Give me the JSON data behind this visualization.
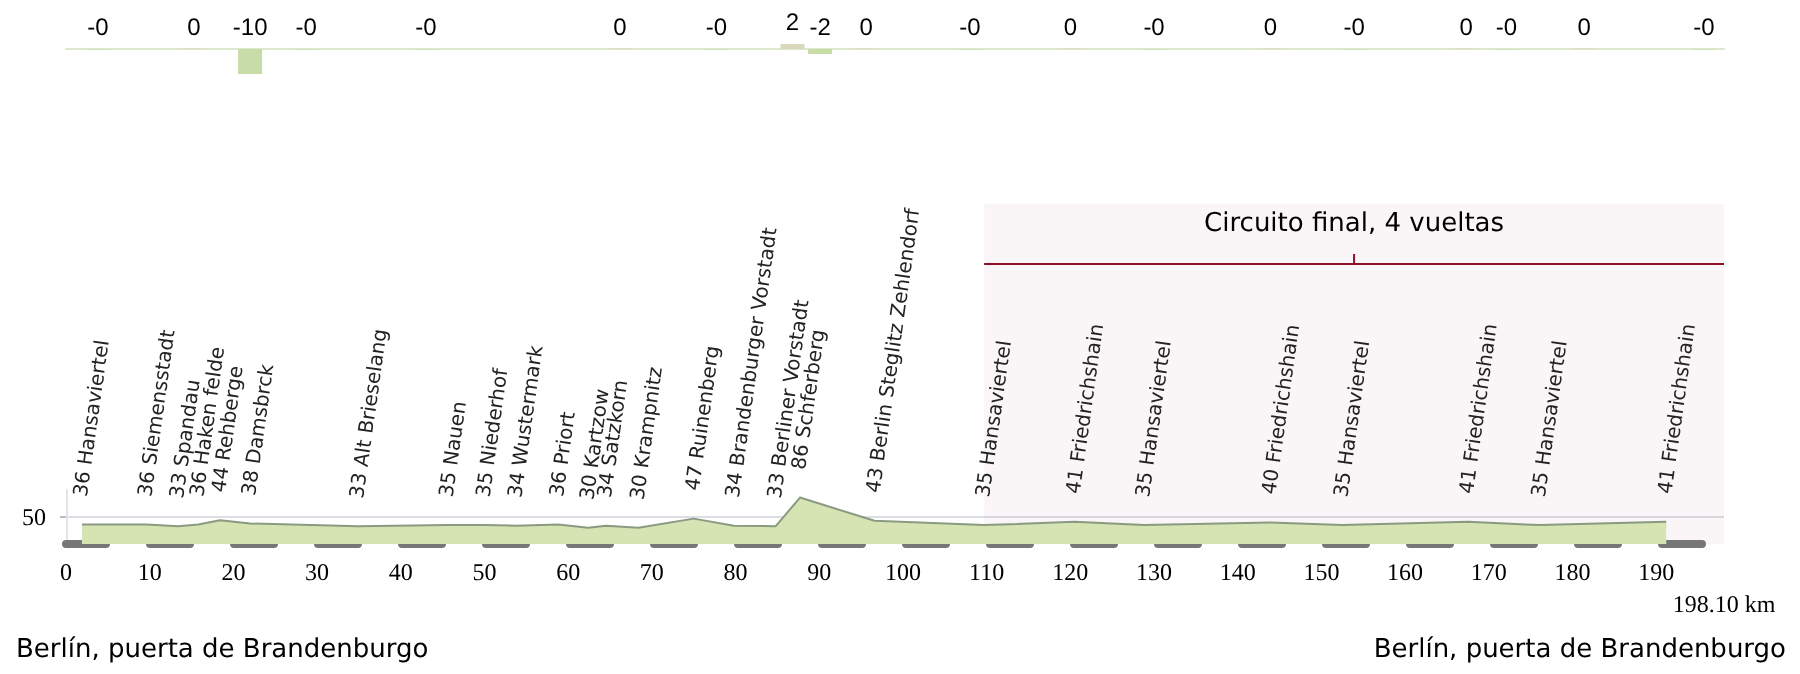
{
  "chart_data": [
    {
      "type": "bar",
      "x": [
        3.8,
        15.3,
        22.0,
        28.7,
        43.0,
        66.2,
        77.7,
        86.8,
        90.1,
        95.6,
        108.0,
        120.0,
        130.0,
        143.9,
        153.9,
        167.3,
        172.1,
        181.4,
        195.7
      ],
      "values": [
        -0.2,
        0.2,
        -10,
        -0.2,
        -0.2,
        0.2,
        -0.2,
        2,
        -2,
        0.2,
        -0.2,
        0.2,
        -0.2,
        0.2,
        -0.2,
        0.2,
        -0.2,
        0.2,
        -0.2
      ],
      "value_labels": [
        "-0",
        "0",
        "-10",
        "-0",
        "-0",
        "0",
        "-0",
        "2",
        "-2",
        "0",
        "-0",
        "0",
        "-0",
        "0",
        "-0",
        "0",
        "-0",
        "0",
        "-0"
      ],
      "colors": [
        "#c8dca8",
        "#d8d8bc",
        "#c8dca8",
        "#c8dca8",
        "#c8dca8",
        "#d8d8bc",
        "#c8dca8",
        "#d8d8bc",
        "#c8dca8",
        "#d8d8bc",
        "#c8dca8",
        "#d8d8bc",
        "#c8dca8",
        "#d8d8bc",
        "#c8dca8",
        "#d8d8bc",
        "#c8dca8",
        "#d8d8bc",
        "#c8dca8"
      ],
      "xlim": [
        0,
        198.1
      ],
      "tick_labels": false
    },
    {
      "type": "area",
      "color": "#8a9a80",
      "x": [
        1.9,
        9.6,
        13.4,
        15.8,
        18.4,
        22.0,
        34.9,
        45.6,
        50.0,
        53.8,
        58.8,
        62.4,
        64.5,
        68.4,
        75.0,
        79.8,
        84.8,
        87.7,
        96.6,
        109.7,
        120.5,
        128.8,
        143.9,
        152.5,
        167.5,
        176.1,
        191.2
      ],
      "values": [
        36,
        36,
        33,
        36,
        44,
        38,
        33,
        35,
        35,
        34,
        36,
        30,
        34,
        30,
        47,
        34,
        33,
        86,
        43,
        35,
        41,
        35,
        40,
        35,
        41,
        35,
        41
      ],
      "value_labels": [
        "36 Hansaviertel",
        "36 Siemensstadt",
        "33 Spandau",
        "36 Haken felde",
        "44 Rehberge",
        "38 Damsbrck",
        "33 Alt Brieselang",
        "35 Nauen",
        "35 Niederhof",
        "34 Wustermark",
        "36 Priort",
        "30 Kartzow",
        "34 Satzkorn",
        "30 Krampnitz",
        "47 Ruinenberg",
        "34 Brandenburger Vorstadt",
        "33 Berliner Vorstadt",
        "86 Schferberg",
        "43 Berlin Steglitz Zehlendorf",
        "35 Hansaviertel",
        "41 Friedrichshain",
        "35 Hansaviertel",
        "40 Friedrichshain",
        "35 Hansaviertel",
        "41 Friedrichshain",
        "35 Hansaviertel",
        "41 Friedrichshain"
      ],
      "xlim": [
        0,
        198.1
      ],
      "xticks": [
        0,
        10,
        20,
        30,
        40,
        50,
        60,
        70,
        80,
        90,
        100,
        110,
        120,
        130,
        140,
        150,
        160,
        170,
        180,
        190
      ],
      "ylim": [
        0,
        100
      ],
      "yticks": [
        50
      ],
      "marker": "none",
      "grid": "y",
      "bands": [
        {
          "axis": "x",
          "from": 109.7,
          "to": 198.1,
          "label": "Circuito final, 4 vueltas",
          "color": "#8b1028"
        }
      ],
      "annotations": [
        "Berlín, puerta de Brandenburgo",
        "Berlín, puerta de Brandenburgo",
        "198.10 km"
      ]
    }
  ]
}
